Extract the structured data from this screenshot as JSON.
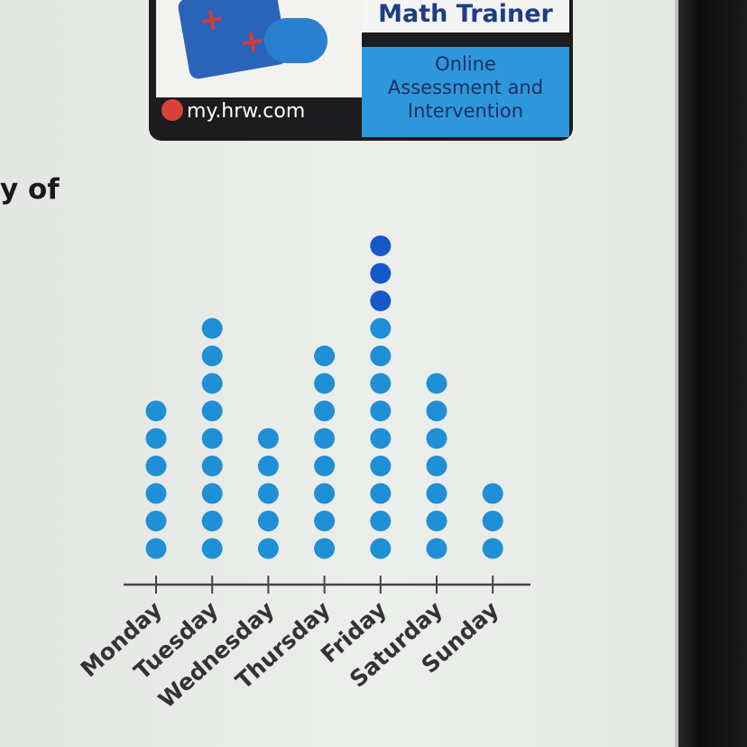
{
  "banner": {
    "title": "Math Trainer",
    "subtitle_lines": [
      "Online",
      "Assessment and",
      "Intervention"
    ],
    "site": "my.hrw.com"
  },
  "partial_text": "y of",
  "colors": {
    "dot": "#1f8fd6",
    "dot_top": "#1558c8",
    "axis": "#444444"
  },
  "chart_data": {
    "type": "dot plot",
    "categories": [
      "Monday",
      "Tuesday",
      "Wednesday",
      "Thursday",
      "Friday",
      "Saturday",
      "Sunday"
    ],
    "values": [
      6,
      9,
      5,
      8,
      12,
      7,
      3
    ],
    "title": "",
    "xlabel": "",
    "ylabel": ""
  }
}
